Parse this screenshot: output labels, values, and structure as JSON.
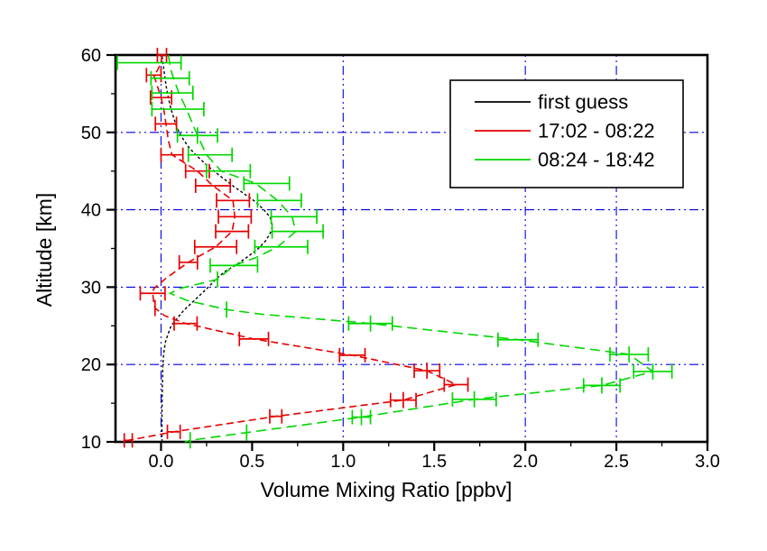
{
  "figure": {
    "x_axis": {
      "title": "Volume Mixing Ratio [ppbv]",
      "tick_labels": [
        "0.0",
        "0.5",
        "1.0",
        "1.5",
        "2.0",
        "2.5",
        "3.0"
      ],
      "major_ticks": [
        0,
        0.5,
        1.0,
        1.5,
        2.0,
        2.5,
        3.0
      ],
      "minor_ticks": [
        0.25,
        0.75,
        1.25,
        1.75,
        2.25,
        2.75
      ],
      "range": [
        -0.25,
        3.0
      ]
    },
    "y_axis": {
      "title": "Altitude [km]",
      "tick_labels": [
        "10",
        "20",
        "30",
        "40",
        "50",
        "60"
      ],
      "major_ticks": [
        10,
        20,
        30,
        40,
        50,
        60
      ],
      "minor_ticks": [
        15,
        25,
        35,
        45,
        55
      ],
      "range": [
        10,
        60
      ]
    },
    "gridlines": {
      "x_values": [
        0,
        1.0,
        2.0,
        2.5
      ],
      "y_values": [
        20,
        30,
        40,
        50
      ],
      "color": "#0000e8"
    }
  },
  "legend": {
    "entries": [
      {
        "label": "first guess",
        "color": "#000000"
      },
      {
        "label": "17:02 - 08:22",
        "color": "#e80000"
      },
      {
        "label": "08:24 - 18:42",
        "color": "#00d800"
      }
    ]
  },
  "chart_data": {
    "type": "line",
    "title": "",
    "xlabel": "Volume Mixing Ratio [ppbv]",
    "ylabel": "Altitude [km]",
    "xlim": [
      -0.25,
      3.0
    ],
    "ylim": [
      10,
      60
    ],
    "grid": "blue dash-dot at x=0,1,2,2.5 and y=20,30,40,50",
    "legend_position": "upper right",
    "point_format": "[altitude_km, vmr_ppbv, err_left, err_right, has_hbar, has_vtick]",
    "series": [
      {
        "name": "first guess",
        "color": "#000000",
        "dash": "3,2.5",
        "profile": [
          [
            10,
            0.005
          ],
          [
            12,
            0.005
          ],
          [
            14,
            0.005
          ],
          [
            16,
            0.006
          ],
          [
            18,
            0.008
          ],
          [
            20,
            0.01
          ],
          [
            21,
            0.013
          ],
          [
            22,
            0.018
          ],
          [
            23,
            0.025
          ],
          [
            24,
            0.04
          ],
          [
            25,
            0.055
          ],
          [
            26,
            0.09
          ],
          [
            27,
            0.125
          ],
          [
            28,
            0.17
          ],
          [
            29,
            0.215
          ],
          [
            30,
            0.26
          ],
          [
            31,
            0.3
          ],
          [
            32,
            0.35
          ],
          [
            33,
            0.42
          ],
          [
            34,
            0.48
          ],
          [
            35,
            0.535
          ],
          [
            36,
            0.575
          ],
          [
            37,
            0.6
          ],
          [
            37.5,
            0.608
          ],
          [
            38,
            0.61
          ],
          [
            39,
            0.6
          ],
          [
            40,
            0.565
          ],
          [
            41,
            0.52
          ],
          [
            42,
            0.46
          ],
          [
            43,
            0.4
          ],
          [
            44,
            0.345
          ],
          [
            45,
            0.29
          ],
          [
            46,
            0.24
          ],
          [
            47,
            0.195
          ],
          [
            48,
            0.155
          ],
          [
            49,
            0.125
          ],
          [
            50,
            0.1
          ],
          [
            51,
            0.082
          ],
          [
            52,
            0.068
          ],
          [
            53,
            0.055
          ],
          [
            54,
            0.045
          ],
          [
            55,
            0.036
          ],
          [
            56,
            0.028
          ],
          [
            57,
            0.022
          ],
          [
            58,
            0.016
          ],
          [
            59,
            0.01
          ],
          [
            60,
            0.005
          ]
        ],
        "points": []
      },
      {
        "name": "17:02 - 08:22",
        "color": "#e80000",
        "dash": "8,4.5",
        "profile": [
          [
            60,
            0.005
          ],
          [
            59,
            0.0
          ],
          [
            58,
            -0.02
          ],
          [
            57.4,
            -0.04
          ],
          [
            56,
            -0.02
          ],
          [
            54.5,
            0.0
          ],
          [
            53,
            0.015
          ],
          [
            51.1,
            0.027
          ],
          [
            49,
            0.04
          ],
          [
            47.1,
            0.06
          ],
          [
            45,
            0.2
          ],
          [
            43.1,
            0.285
          ],
          [
            41.2,
            0.395
          ],
          [
            39.1,
            0.405
          ],
          [
            37.2,
            0.39
          ],
          [
            35.2,
            0.3
          ],
          [
            33.2,
            0.15
          ],
          [
            31.2,
            0.03
          ],
          [
            29.8,
            -0.04
          ],
          [
            29.2,
            -0.046
          ],
          [
            28,
            -0.04
          ],
          [
            27.3,
            -0.033
          ],
          [
            26.3,
            0.02
          ],
          [
            25.3,
            0.135
          ],
          [
            23.3,
            0.51
          ],
          [
            21.2,
            1.05
          ],
          [
            19.2,
            1.46
          ],
          [
            17.4,
            1.62
          ],
          [
            15.4,
            1.33
          ],
          [
            13.3,
            0.63
          ],
          [
            11.3,
            0.07
          ],
          [
            10.2,
            -0.18
          ]
        ],
        "points": [
          [
            60.0,
            0.005,
            0.025,
            0.025,
            1,
            0
          ],
          [
            57.4,
            -0.04,
            0.04,
            0.04,
            1,
            0
          ],
          [
            54.5,
            0.0,
            0.058,
            0.058,
            1,
            0
          ],
          [
            51.1,
            0.027,
            0.058,
            0.058,
            1,
            0
          ],
          [
            47.1,
            0.06,
            0.06,
            0.06,
            1,
            0
          ],
          [
            45.0,
            0.2,
            0.065,
            0.065,
            1,
            0
          ],
          [
            43.1,
            0.285,
            0.095,
            0.095,
            1,
            0
          ],
          [
            41.2,
            0.395,
            0.09,
            0.09,
            1,
            0
          ],
          [
            39.1,
            0.405,
            0.09,
            0.09,
            1,
            0
          ],
          [
            37.2,
            0.39,
            0.09,
            0.09,
            1,
            0
          ],
          [
            35.2,
            0.3,
            0.115,
            0.115,
            1,
            0
          ],
          [
            33.2,
            0.15,
            0.05,
            0.05,
            1,
            0
          ],
          [
            29.2,
            -0.046,
            0.068,
            0.068,
            1,
            0
          ],
          [
            27.3,
            -0.033,
            0,
            0,
            0,
            1
          ],
          [
            25.3,
            0.135,
            0.063,
            0.063,
            1,
            0
          ],
          [
            23.3,
            0.51,
            0.08,
            0.08,
            1,
            0
          ],
          [
            21.2,
            1.05,
            0.07,
            0.07,
            1,
            0
          ],
          [
            19.2,
            1.46,
            0.07,
            0.07,
            1,
            1
          ],
          [
            17.4,
            1.62,
            0.065,
            0.065,
            1,
            0
          ],
          [
            15.4,
            1.33,
            0.07,
            0.07,
            1,
            1
          ],
          [
            13.3,
            0.63,
            0.033,
            0.033,
            1,
            0
          ],
          [
            11.3,
            0.07,
            0.035,
            0.035,
            1,
            0
          ],
          [
            10.2,
            -0.18,
            0.022,
            0.022,
            1,
            0
          ]
        ]
      },
      {
        "name": "08:24 - 18:42",
        "color": "#00d800",
        "dash": "11,6",
        "profile": [
          [
            60,
            0.04
          ],
          [
            58,
            0.055
          ],
          [
            57,
            0.068
          ],
          [
            55,
            0.1
          ],
          [
            53,
            0.14
          ],
          [
            51,
            0.175
          ],
          [
            49.6,
            0.2
          ],
          [
            47.1,
            0.25
          ],
          [
            45,
            0.33
          ],
          [
            43.4,
            0.52
          ],
          [
            41.2,
            0.64
          ],
          [
            39.1,
            0.72
          ],
          [
            37.2,
            0.74
          ],
          [
            35.2,
            0.64
          ],
          [
            33.8,
            0.52
          ],
          [
            32.8,
            0.4
          ],
          [
            31.0,
            0.31
          ],
          [
            29.8,
            0.1
          ],
          [
            29.2,
            0.05
          ],
          [
            28.3,
            0.14
          ],
          [
            27.1,
            0.36
          ],
          [
            26.5,
            0.55
          ],
          [
            25.3,
            1.15
          ],
          [
            23.2,
            1.96
          ],
          [
            21.3,
            2.57
          ],
          [
            19.1,
            2.7
          ],
          [
            17.3,
            2.42
          ],
          [
            15.5,
            1.72
          ],
          [
            13.2,
            1.1
          ],
          [
            11.2,
            0.47
          ],
          [
            10.2,
            0.16
          ],
          [
            10.0,
            0.13
          ]
        ],
        "points": [
          [
            59.0,
            -0.02,
            0.22,
            0.13,
            1,
            0
          ],
          [
            57.0,
            0.045,
            0.1,
            0.11,
            1,
            0
          ],
          [
            55.1,
            0.065,
            0.115,
            0.11,
            1,
            0
          ],
          [
            53.0,
            0.095,
            0.145,
            0.14,
            1,
            0
          ],
          [
            49.6,
            0.2,
            0.11,
            0.11,
            1,
            1
          ],
          [
            47.1,
            0.27,
            0.12,
            0.12,
            1,
            0
          ],
          [
            45.0,
            0.37,
            0.12,
            0.12,
            1,
            0
          ],
          [
            43.4,
            0.58,
            0.125,
            0.125,
            1,
            0
          ],
          [
            41.2,
            0.65,
            0.12,
            0.12,
            1,
            0
          ],
          [
            39.1,
            0.73,
            0.125,
            0.125,
            1,
            0
          ],
          [
            37.2,
            0.75,
            0.14,
            0.14,
            1,
            0
          ],
          [
            35.2,
            0.66,
            0.145,
            0.145,
            1,
            0
          ],
          [
            32.8,
            0.4,
            0.13,
            0.13,
            1,
            0
          ],
          [
            31.0,
            0.31,
            0,
            0,
            0,
            1
          ],
          [
            27.1,
            0.36,
            0,
            0,
            0,
            1
          ],
          [
            25.3,
            1.15,
            0.12,
            0.12,
            1,
            1
          ],
          [
            23.2,
            1.96,
            0.11,
            0.11,
            1,
            0
          ],
          [
            21.3,
            2.57,
            0.105,
            0.105,
            1,
            1
          ],
          [
            19.1,
            2.7,
            0.105,
            0.105,
            1,
            1
          ],
          [
            17.3,
            2.42,
            0.1,
            0.1,
            1,
            1
          ],
          [
            15.5,
            1.72,
            0.12,
            0.12,
            1,
            1
          ],
          [
            13.2,
            1.1,
            0.05,
            0.05,
            1,
            1
          ],
          [
            11.2,
            0.47,
            0,
            0,
            0,
            1
          ],
          [
            10.2,
            0.16,
            0,
            0,
            0,
            1
          ]
        ]
      }
    ]
  }
}
